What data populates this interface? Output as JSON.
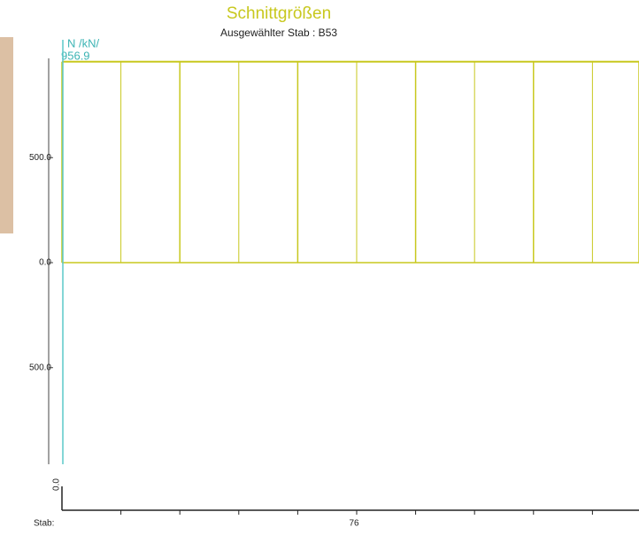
{
  "chart_data": {
    "type": "hatched-area",
    "title": "Schnittgrößen",
    "subtitle": "Ausgewählter Stab : B53",
    "y_label": "N /kN/",
    "x_label": "Stab:",
    "member_label": "76",
    "series": [
      {
        "color": "#c8c81e",
        "x": [
          0,
          1,
          2,
          3,
          4,
          5,
          6,
          7,
          8,
          9,
          9.79
        ],
        "values": [
          956.9,
          956.9,
          956.9,
          956.9,
          956.9,
          956.9,
          956.9,
          956.9,
          956.9,
          956.9,
          956.9
        ]
      }
    ],
    "xlim": [
      0,
      9.79
    ],
    "xticks": [
      {
        "value": 0,
        "label": "0.0"
      }
    ],
    "ylim": [
      -960,
      960
    ],
    "yticks": [
      {
        "value": 500,
        "label": "500.0"
      },
      {
        "value": 0,
        "label": "0.0"
      },
      {
        "value": -500,
        "label": "500.0"
      }
    ],
    "grid": false
  }
}
